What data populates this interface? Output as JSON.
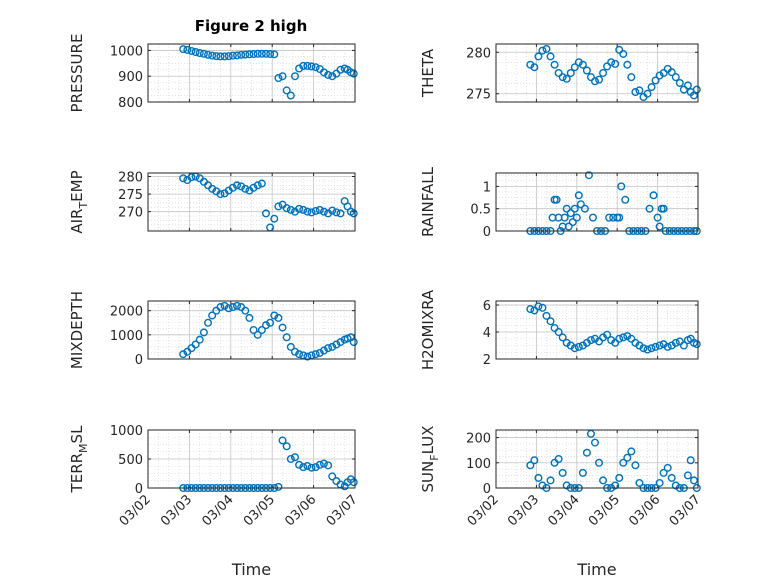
{
  "figure_title": "Figure 2 high",
  "colors": {
    "marker": "#0072BD",
    "axis": "#262626",
    "grid": "#d0d0d0"
  },
  "chart_data": [
    {
      "type": "scatter",
      "title": "Figure 2 high",
      "xlabel": "",
      "ylabel": "PRESSURE",
      "ylim": [
        800,
        1025
      ],
      "yticks": [
        800,
        900,
        1000
      ],
      "ytick_labels": [
        "800",
        "900",
        "1000"
      ],
      "xlim": [
        0,
        5
      ],
      "xticks": [
        0,
        1,
        2,
        3,
        4,
        5
      ],
      "xtick_labels": [],
      "grid": "on",
      "x": [
        0.85,
        0.95,
        1.05,
        1.15,
        1.25,
        1.35,
        1.45,
        1.55,
        1.65,
        1.75,
        1.85,
        1.95,
        2.05,
        2.15,
        2.25,
        2.35,
        2.45,
        2.55,
        2.65,
        2.75,
        2.85,
        2.95,
        3.05,
        3.15,
        3.25,
        3.35,
        3.45,
        3.55,
        3.65,
        3.75,
        3.85,
        3.95,
        4.05,
        4.15,
        4.25,
        4.35,
        4.45,
        4.55,
        4.65,
        4.75,
        4.82,
        4.9,
        4.97
      ],
      "y": [
        1005,
        1002,
        998,
        994,
        990,
        987,
        983,
        980,
        978,
        977,
        977,
        978,
        980,
        981,
        983,
        984,
        985,
        986,
        987,
        987,
        987,
        986,
        985,
        893,
        900,
        845,
        825,
        900,
        930,
        940,
        940,
        938,
        935,
        928,
        915,
        905,
        900,
        910,
        925,
        930,
        925,
        915,
        910
      ]
    },
    {
      "type": "scatter",
      "xlabel": "",
      "ylabel": "THETA",
      "ylim": [
        274,
        281
      ],
      "yticks": [
        275,
        280
      ],
      "ytick_labels": [
        "275",
        "280"
      ],
      "xlim": [
        0,
        5
      ],
      "xticks": [
        0,
        1,
        2,
        3,
        4,
        5
      ],
      "xtick_labels": [],
      "grid": "on",
      "x": [
        0.85,
        0.95,
        1.05,
        1.15,
        1.25,
        1.35,
        1.45,
        1.55,
        1.65,
        1.75,
        1.85,
        1.95,
        2.05,
        2.15,
        2.25,
        2.35,
        2.45,
        2.55,
        2.65,
        2.75,
        2.85,
        2.95,
        3.05,
        3.15,
        3.25,
        3.35,
        3.45,
        3.55,
        3.65,
        3.75,
        3.85,
        3.95,
        4.05,
        4.15,
        4.25,
        4.35,
        4.45,
        4.55,
        4.65,
        4.75,
        4.82,
        4.9,
        4.97
      ],
      "y": [
        278.5,
        278.2,
        279.5,
        280.2,
        280.4,
        279.5,
        278.5,
        277.5,
        277,
        276.8,
        277.5,
        278.2,
        278.8,
        278.5,
        277.8,
        277,
        276.5,
        276.7,
        277.5,
        278.3,
        278.8,
        278.6,
        280.3,
        279.8,
        278.5,
        277,
        275.2,
        275.4,
        274.6,
        275,
        275.8,
        276.6,
        277.2,
        277.5,
        278,
        277.6,
        277,
        276.3,
        275.5,
        276,
        275.2,
        274.8,
        275.5
      ]
    },
    {
      "type": "scatter",
      "xlabel": "",
      "ylabel": "AIR_TEMP",
      "ylim": [
        264.5,
        281
      ],
      "yticks": [
        270,
        275,
        280
      ],
      "ytick_labels": [
        "270",
        "275",
        "280"
      ],
      "xlim": [
        0,
        5
      ],
      "xticks": [
        0,
        1,
        2,
        3,
        4,
        5
      ],
      "xtick_labels": [],
      "grid": "on",
      "x": [
        0.85,
        0.95,
        1.05,
        1.15,
        1.25,
        1.35,
        1.45,
        1.55,
        1.65,
        1.75,
        1.85,
        1.95,
        2.05,
        2.15,
        2.25,
        2.35,
        2.45,
        2.55,
        2.65,
        2.75,
        2.85,
        2.95,
        3.05,
        3.15,
        3.25,
        3.35,
        3.45,
        3.55,
        3.65,
        3.75,
        3.85,
        3.95,
        4.05,
        4.15,
        4.25,
        4.35,
        4.45,
        4.55,
        4.65,
        4.75,
        4.82,
        4.9,
        4.97
      ],
      "y": [
        279.5,
        279,
        279.8,
        280,
        279.5,
        278.5,
        277.5,
        276.5,
        275.8,
        275,
        275.2,
        276,
        276.8,
        277.5,
        277.2,
        276.5,
        276,
        276.8,
        277.5,
        278,
        269.5,
        265.5,
        268,
        271.5,
        272,
        271,
        270.5,
        270,
        270.8,
        270.5,
        270,
        269.8,
        270.2,
        270.5,
        270,
        269.5,
        270.3,
        269.8,
        269.5,
        273,
        271.5,
        270,
        269.5
      ]
    },
    {
      "type": "scatter",
      "xlabel": "",
      "ylabel": "RAINFALL",
      "ylim": [
        0,
        1.3
      ],
      "yticks": [
        0,
        0.5,
        1
      ],
      "ytick_labels": [
        "0",
        "0.5",
        "1"
      ],
      "xlim": [
        0,
        5
      ],
      "xticks": [
        0,
        1,
        2,
        3,
        4,
        5
      ],
      "xtick_labels": [],
      "grid": "on",
      "x": [
        0.85,
        0.95,
        1.05,
        1.15,
        1.25,
        1.35,
        1.4,
        1.45,
        1.5,
        1.55,
        1.6,
        1.65,
        1.7,
        1.75,
        1.8,
        1.85,
        1.9,
        1.95,
        2.0,
        2.05,
        2.1,
        2.2,
        2.3,
        2.4,
        2.5,
        2.6,
        2.7,
        2.8,
        2.9,
        3.0,
        3.05,
        3.1,
        3.2,
        3.3,
        3.4,
        3.5,
        3.6,
        3.7,
        3.8,
        3.9,
        4.0,
        4.05,
        4.1,
        4.15,
        4.2,
        4.3,
        4.4,
        4.5,
        4.6,
        4.7,
        4.8,
        4.9,
        4.97
      ],
      "y": [
        0,
        0,
        0,
        0,
        0,
        0,
        0.3,
        0.7,
        0.7,
        0.3,
        0,
        0.1,
        0.3,
        0.5,
        0.1,
        0.4,
        0.2,
        0.5,
        0.3,
        0.8,
        0.6,
        0.5,
        1.25,
        0.3,
        0,
        0,
        0,
        0.3,
        0.3,
        0.3,
        0.3,
        1.0,
        0.7,
        0,
        0,
        0,
        0,
        0,
        0.5,
        0.8,
        0.3,
        0.1,
        0.5,
        0.5,
        0,
        0,
        0,
        0,
        0,
        0,
        0,
        0,
        0
      ]
    },
    {
      "type": "scatter",
      "xlabel": "",
      "ylabel": "MIXDEPTH",
      "ylim": [
        0,
        2400
      ],
      "yticks": [
        0,
        1000,
        2000
      ],
      "ytick_labels": [
        "0",
        "1000",
        "2000"
      ],
      "xlim": [
        0,
        5
      ],
      "xticks": [
        0,
        1,
        2,
        3,
        4,
        5
      ],
      "xtick_labels": [],
      "grid": "on",
      "x": [
        0.85,
        0.95,
        1.05,
        1.15,
        1.25,
        1.35,
        1.45,
        1.55,
        1.65,
        1.75,
        1.85,
        1.95,
        2.05,
        2.15,
        2.25,
        2.35,
        2.45,
        2.55,
        2.65,
        2.75,
        2.85,
        2.95,
        3.05,
        3.15,
        3.25,
        3.35,
        3.45,
        3.55,
        3.65,
        3.75,
        3.85,
        3.95,
        4.05,
        4.15,
        4.25,
        4.35,
        4.45,
        4.55,
        4.65,
        4.75,
        4.82,
        4.9,
        4.97
      ],
      "y": [
        200,
        300,
        450,
        600,
        800,
        1100,
        1500,
        1800,
        2000,
        2150,
        2200,
        2100,
        2150,
        2200,
        2150,
        2000,
        1700,
        1200,
        1000,
        1200,
        1400,
        1500,
        1800,
        1700,
        1300,
        900,
        500,
        300,
        200,
        150,
        100,
        150,
        200,
        250,
        350,
        450,
        500,
        600,
        700,
        800,
        850,
        900,
        700
      ]
    },
    {
      "type": "scatter",
      "xlabel": "",
      "ylabel": "H2OMIXRA",
      "ylim": [
        2,
        6.3
      ],
      "yticks": [
        2,
        4,
        6
      ],
      "ytick_labels": [
        "2",
        "4",
        "6"
      ],
      "xlim": [
        0,
        5
      ],
      "xticks": [
        0,
        1,
        2,
        3,
        4,
        5
      ],
      "xtick_labels": [],
      "grid": "on",
      "x": [
        0.85,
        0.95,
        1.05,
        1.15,
        1.25,
        1.35,
        1.45,
        1.55,
        1.65,
        1.75,
        1.85,
        1.95,
        2.05,
        2.15,
        2.25,
        2.35,
        2.45,
        2.55,
        2.65,
        2.75,
        2.85,
        2.95,
        3.05,
        3.15,
        3.25,
        3.35,
        3.45,
        3.55,
        3.65,
        3.75,
        3.85,
        3.95,
        4.05,
        4.15,
        4.25,
        4.35,
        4.45,
        4.55,
        4.65,
        4.75,
        4.82,
        4.9,
        4.97
      ],
      "y": [
        5.7,
        5.6,
        5.9,
        5.8,
        5.2,
        4.8,
        4.3,
        4.0,
        3.6,
        3.2,
        3.0,
        2.8,
        2.9,
        3.0,
        3.2,
        3.4,
        3.5,
        3.3,
        3.6,
        3.8,
        3.4,
        3.2,
        3.5,
        3.6,
        3.7,
        3.5,
        3.2,
        3.0,
        2.8,
        2.7,
        2.8,
        2.9,
        3.0,
        3.1,
        2.9,
        3.0,
        3.2,
        3.3,
        3.0,
        3.4,
        3.5,
        3.2,
        3.1
      ]
    },
    {
      "type": "scatter",
      "xlabel": "Time",
      "ylabel": "TERR_MSL",
      "ylim": [
        0,
        1000
      ],
      "yticks": [
        0,
        500,
        1000
      ],
      "ytick_labels": [
        "0",
        "500",
        "1000"
      ],
      "xlim": [
        0,
        5
      ],
      "xticks": [
        0,
        1,
        2,
        3,
        4,
        5
      ],
      "xtick_labels": [
        "03/02",
        "03/03",
        "03/04",
        "03/05",
        "03/06",
        "03/07"
      ],
      "grid": "on",
      "x": [
        0.85,
        0.95,
        1.05,
        1.15,
        1.25,
        1.35,
        1.45,
        1.55,
        1.65,
        1.75,
        1.85,
        1.95,
        2.05,
        2.15,
        2.25,
        2.35,
        2.45,
        2.55,
        2.65,
        2.75,
        2.85,
        2.95,
        3.05,
        3.15,
        3.25,
        3.35,
        3.45,
        3.55,
        3.65,
        3.75,
        3.85,
        3.95,
        4.05,
        4.15,
        4.25,
        4.35,
        4.45,
        4.55,
        4.65,
        4.75,
        4.82,
        4.9,
        4.97
      ],
      "y": [
        0,
        0,
        0,
        0,
        0,
        0,
        0,
        0,
        0,
        0,
        0,
        0,
        0,
        0,
        0,
        0,
        0,
        0,
        0,
        0,
        0,
        0,
        0,
        20,
        820,
        720,
        500,
        530,
        400,
        360,
        380,
        350,
        360,
        400,
        420,
        390,
        200,
        120,
        60,
        30,
        100,
        150,
        100
      ]
    },
    {
      "type": "scatter",
      "xlabel": "Time",
      "ylabel": "SUN_FLUX",
      "ylim": [
        0,
        230
      ],
      "yticks": [
        0,
        100,
        200
      ],
      "ytick_labels": [
        "0",
        "100",
        "200"
      ],
      "xlim": [
        0,
        5
      ],
      "xticks": [
        0,
        1,
        2,
        3,
        4,
        5
      ],
      "xtick_labels": [
        "03/02",
        "03/03",
        "03/04",
        "03/05",
        "03/06",
        "03/07"
      ],
      "grid": "on",
      "x": [
        0.85,
        0.95,
        1.05,
        1.15,
        1.25,
        1.35,
        1.45,
        1.55,
        1.65,
        1.75,
        1.85,
        1.95,
        2.05,
        2.15,
        2.25,
        2.35,
        2.45,
        2.55,
        2.65,
        2.75,
        2.85,
        2.95,
        3.05,
        3.15,
        3.25,
        3.35,
        3.45,
        3.55,
        3.65,
        3.75,
        3.85,
        3.95,
        4.05,
        4.15,
        4.25,
        4.35,
        4.45,
        4.55,
        4.65,
        4.75,
        4.82,
        4.9,
        4.97
      ],
      "y": [
        90,
        110,
        40,
        10,
        0,
        30,
        100,
        115,
        60,
        10,
        0,
        0,
        0,
        60,
        140,
        215,
        180,
        100,
        30,
        0,
        0,
        10,
        40,
        100,
        120,
        145,
        90,
        20,
        0,
        0,
        0,
        0,
        20,
        60,
        80,
        40,
        10,
        0,
        0,
        50,
        110,
        30,
        0
      ]
    }
  ]
}
